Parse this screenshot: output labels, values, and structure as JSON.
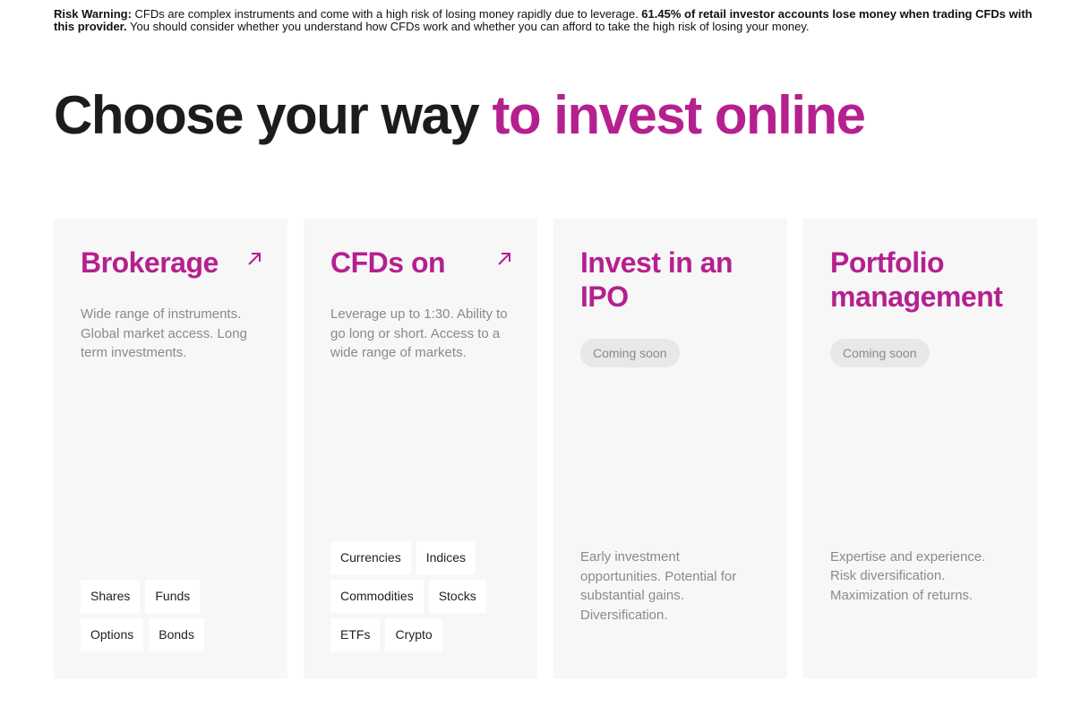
{
  "warning": {
    "label": "Risk Warning:",
    "text1": " CFDs are complex instruments and come with a high risk of losing money rapidly due to leverage. ",
    "bold2": "61.45% of retail investor accounts lose money when trading CFDs with this provider.",
    "text2": " You should consider whether you understand how CFDs work and whether you can afford to take the high risk of losing your money."
  },
  "heading": {
    "part1": "Choose your way ",
    "part2": "to invest online"
  },
  "colors": {
    "accent": "#b5208f",
    "card_bg": "#f7f7f7"
  },
  "cards": [
    {
      "title": "Brokerage",
      "icon": "arrow-up-right-icon",
      "description": "Wide range of instruments. Global market access. Long term investments.",
      "tags": [
        "Shares",
        "Funds",
        "Options",
        "Bonds"
      ]
    },
    {
      "title": "CFDs on",
      "icon": "arrow-up-right-icon",
      "description": "Leverage up to 1:30. Ability to go long or short. Access to a wide range of markets.",
      "tags": [
        "Currencies",
        "Indices",
        "Commodities",
        "Stocks",
        "ETFs",
        "Crypto"
      ]
    },
    {
      "title": "Invest in an IPO",
      "badge": "Coming soon",
      "description": "Early investment opportunities. Potential for substantial gains. Diversification."
    },
    {
      "title": "Portfolio management",
      "badge": "Coming soon",
      "description": "Expertise and experience. Risk diversification. Maximization of returns."
    }
  ]
}
